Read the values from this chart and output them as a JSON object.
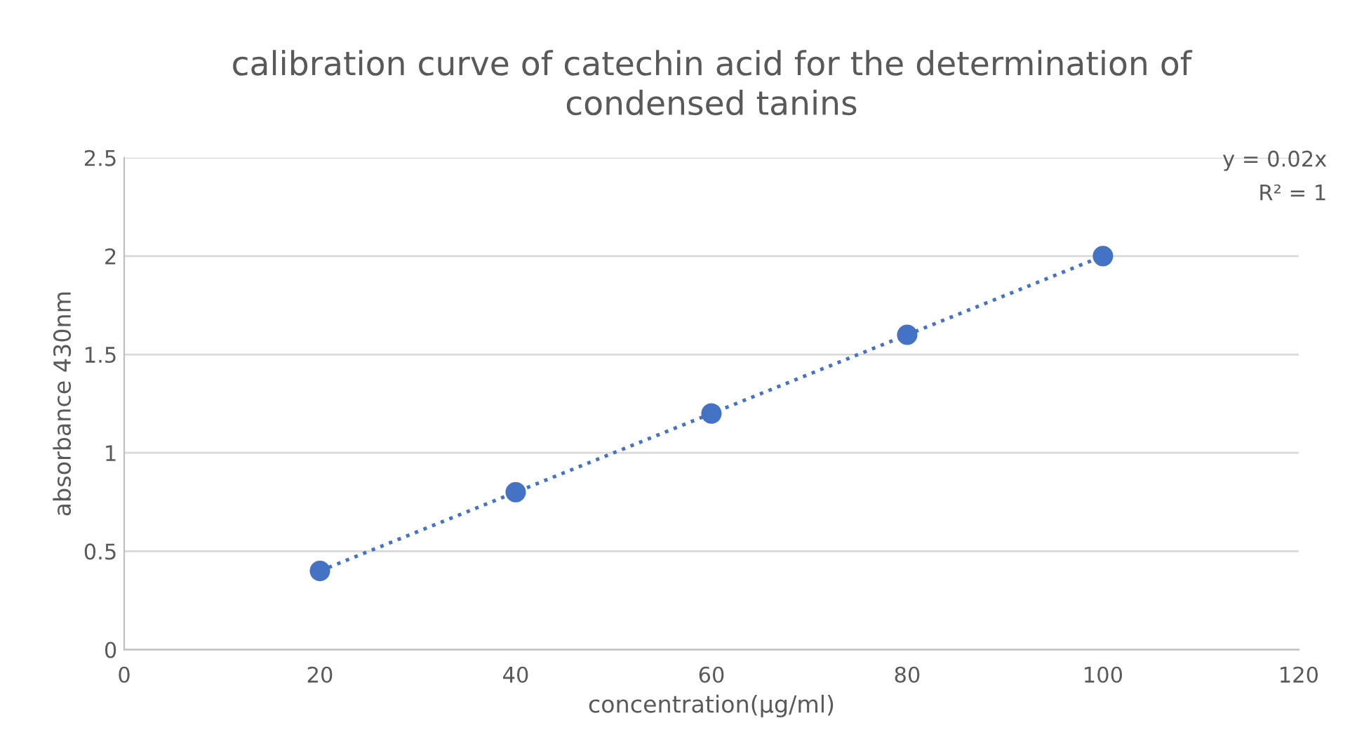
{
  "chart_data": {
    "type": "scatter",
    "title": "calibration curve of catechin acid for the determination of\ncondensed tanins",
    "xlabel": "concentration(µg/ml)",
    "ylabel": "absorbance 430nm",
    "x": [
      20,
      40,
      60,
      80,
      100
    ],
    "series": [
      {
        "color": "#4472c4",
        "marker": "circle",
        "values": [
          0.4,
          0.8,
          1.2,
          1.6,
          2.0
        ]
      },
      {
        "type": "line",
        "color": "#4472c4",
        "line_style": "dotted",
        "x": [
          20,
          100
        ],
        "values": [
          0.4,
          2.0
        ]
      }
    ],
    "annotations": [
      "y = 0.02x",
      "R² = 1"
    ],
    "xlim": [
      0,
      120
    ],
    "xticks": [
      0,
      20,
      40,
      60,
      80,
      100,
      120
    ],
    "ylim": [
      0,
      2.5
    ],
    "yticks": [
      0,
      0.5,
      1,
      1.5,
      2,
      2.5
    ],
    "grid": "y",
    "legend": false
  }
}
